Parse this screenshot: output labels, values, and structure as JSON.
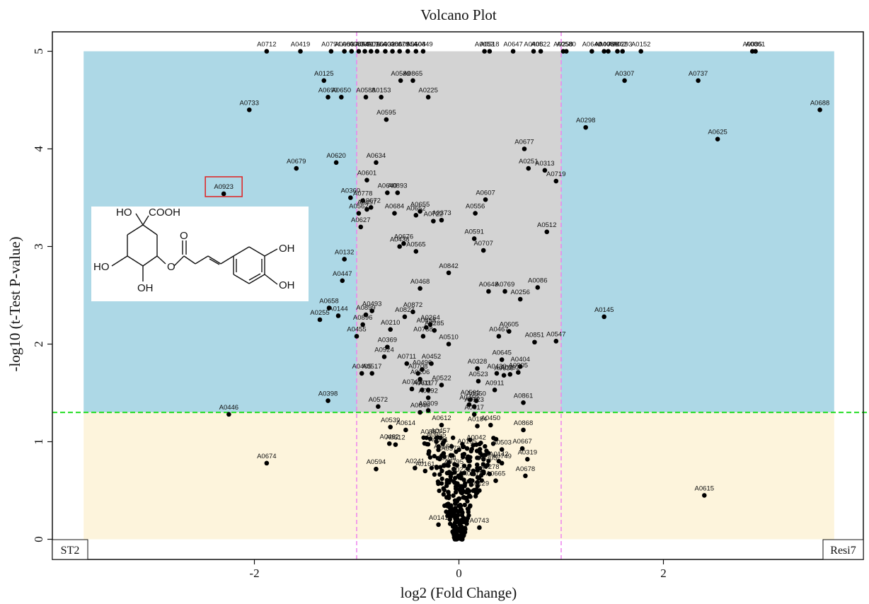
{
  "chart_data": {
    "type": "scatter",
    "title": "Volcano Plot",
    "xlabel": "log2 (Fold Change)",
    "ylabel": "-log10 (t-Test P-value)",
    "xlim": [
      -3.98,
      3.98
    ],
    "ylim": [
      -0.2,
      5.2
    ],
    "x_ticks": [
      -2,
      0,
      2
    ],
    "y_ticks": [
      0,
      1,
      2,
      3,
      4,
      5
    ],
    "fc_threshold_lines": [
      -1,
      1
    ],
    "p_threshold_line": 1.3,
    "group_left": "ST2",
    "group_right": "Resi7",
    "highlight_label": "A0923",
    "colors": {
      "significant_region": "#add8e6",
      "non_significant_region": "#fdf4dc",
      "central_region": "#d3d3d3",
      "fc_line": "#ee82ee",
      "p_line": "#22dd22",
      "highlight_box": "#e02020",
      "points": "#000000"
    },
    "labeled_points": [
      {
        "label": "A0712",
        "x": -1.88,
        "y": 5.0
      },
      {
        "label": "A0419",
        "x": -1.55,
        "y": 5.0
      },
      {
        "label": "A0794",
        "x": -1.25,
        "y": 5.0
      },
      {
        "label": "A0083",
        "x": -1.12,
        "y": 5.0
      },
      {
        "label": "A0038",
        "x": -1.05,
        "y": 5.0
      },
      {
        "label": "A0054",
        "x": -0.98,
        "y": 5.0
      },
      {
        "label": "A0051",
        "x": -0.92,
        "y": 5.0
      },
      {
        "label": "A0176",
        "x": -0.86,
        "y": 5.0
      },
      {
        "label": "A0164",
        "x": -0.8,
        "y": 5.0
      },
      {
        "label": "A0032",
        "x": -0.72,
        "y": 5.0
      },
      {
        "label": "A0386",
        "x": -0.65,
        "y": 5.0
      },
      {
        "label": "A0079",
        "x": -0.58,
        "y": 5.0
      },
      {
        "label": "A0554",
        "x": -0.5,
        "y": 5.0
      },
      {
        "label": "A0608",
        "x": -0.42,
        "y": 5.0
      },
      {
        "label": "A0449",
        "x": -0.35,
        "y": 5.0
      },
      {
        "label": "A0053",
        "x": 0.25,
        "y": 5.0
      },
      {
        "label": "A0518",
        "x": 0.3,
        "y": 5.0
      },
      {
        "label": "A0647",
        "x": 0.53,
        "y": 5.0
      },
      {
        "label": "A0408",
        "x": 0.73,
        "y": 5.0
      },
      {
        "label": "A0522",
        "x": 0.8,
        "y": 5.0
      },
      {
        "label": "A0258",
        "x": 1.02,
        "y": 5.0
      },
      {
        "label": "A0580",
        "x": 1.05,
        "y": 5.0
      },
      {
        "label": "A0640",
        "x": 1.3,
        "y": 5.0
      },
      {
        "label": "A0408",
        "x": 1.42,
        "y": 5.0
      },
      {
        "label": "A0086",
        "x": 1.46,
        "y": 5.0
      },
      {
        "label": "A0862",
        "x": 1.55,
        "y": 5.0
      },
      {
        "label": "A0293",
        "x": 1.6,
        "y": 5.0
      },
      {
        "label": "A0152",
        "x": 1.78,
        "y": 5.0
      },
      {
        "label": "A0035",
        "x": 2.87,
        "y": 5.0
      },
      {
        "label": "A0861",
        "x": 2.9,
        "y": 5.0
      },
      {
        "label": "A0125",
        "x": -1.32,
        "y": 4.7
      },
      {
        "label": "A0589",
        "x": -0.57,
        "y": 4.7
      },
      {
        "label": "A0865",
        "x": -0.45,
        "y": 4.7
      },
      {
        "label": "A0307",
        "x": 1.62,
        "y": 4.7
      },
      {
        "label": "A0737",
        "x": 2.34,
        "y": 4.7
      },
      {
        "label": "A0690",
        "x": -1.28,
        "y": 4.53
      },
      {
        "label": "A0650",
        "x": -1.15,
        "y": 4.53
      },
      {
        "label": "A0588",
        "x": -0.91,
        "y": 4.53
      },
      {
        "label": "A0153",
        "x": -0.76,
        "y": 4.53
      },
      {
        "label": "A0225",
        "x": -0.3,
        "y": 4.53
      },
      {
        "label": "A0733",
        "x": -2.05,
        "y": 4.4
      },
      {
        "label": "A0688",
        "x": 3.53,
        "y": 4.4
      },
      {
        "label": "A0595",
        "x": -0.71,
        "y": 4.3
      },
      {
        "label": "A0298",
        "x": 1.24,
        "y": 4.22
      },
      {
        "label": "A0625",
        "x": 2.53,
        "y": 4.1
      },
      {
        "label": "A0677",
        "x": 0.64,
        "y": 4.0
      },
      {
        "label": "A0634",
        "x": -0.81,
        "y": 3.86
      },
      {
        "label": "A0620",
        "x": -1.2,
        "y": 3.86
      },
      {
        "label": "A0679",
        "x": -1.59,
        "y": 3.8
      },
      {
        "label": "A0251",
        "x": 0.68,
        "y": 3.8
      },
      {
        "label": "A0313",
        "x": 0.84,
        "y": 3.78
      },
      {
        "label": "A0719",
        "x": 0.95,
        "y": 3.67
      },
      {
        "label": "A0601",
        "x": -0.9,
        "y": 3.68
      },
      {
        "label": "A0640",
        "x": -0.7,
        "y": 3.55
      },
      {
        "label": "A0893",
        "x": -0.6,
        "y": 3.55
      },
      {
        "label": "A0923",
        "x": -2.3,
        "y": 3.54
      },
      {
        "label": "A0360",
        "x": -1.06,
        "y": 3.5
      },
      {
        "label": "A0778",
        "x": -0.94,
        "y": 3.47
      },
      {
        "label": "A0607",
        "x": 0.26,
        "y": 3.48
      },
      {
        "label": "A0672",
        "x": -0.86,
        "y": 3.4
      },
      {
        "label": "A0457",
        "x": -0.9,
        "y": 3.38
      },
      {
        "label": "A0655",
        "x": -0.38,
        "y": 3.36
      },
      {
        "label": "A0652",
        "x": -0.42,
        "y": 3.32
      },
      {
        "label": "A0556",
        "x": 0.16,
        "y": 3.34
      },
      {
        "label": "A0562",
        "x": -0.98,
        "y": 3.34
      },
      {
        "label": "A0684",
        "x": -0.63,
        "y": 3.34
      },
      {
        "label": "A0373",
        "x": -0.17,
        "y": 3.27
      },
      {
        "label": "A0722",
        "x": -0.25,
        "y": 3.26
      },
      {
        "label": "A0627",
        "x": -0.96,
        "y": 3.2
      },
      {
        "label": "A0512",
        "x": 0.86,
        "y": 3.15
      },
      {
        "label": "A0591",
        "x": 0.15,
        "y": 3.08
      },
      {
        "label": "A0676",
        "x": -0.54,
        "y": 3.03
      },
      {
        "label": "A0438",
        "x": -0.58,
        "y": 3.0
      },
      {
        "label": "A0565",
        "x": -0.42,
        "y": 2.95
      },
      {
        "label": "A0707",
        "x": 0.24,
        "y": 2.96
      },
      {
        "label": "A0132",
        "x": -1.12,
        "y": 2.87
      },
      {
        "label": "A0842",
        "x": -0.1,
        "y": 2.73
      },
      {
        "label": "A0447",
        "x": -1.14,
        "y": 2.65
      },
      {
        "label": "A0468",
        "x": -0.38,
        "y": 2.57
      },
      {
        "label": "A0086",
        "x": 0.77,
        "y": 2.58
      },
      {
        "label": "A0648",
        "x": 0.29,
        "y": 2.54
      },
      {
        "label": "A0769",
        "x": 0.45,
        "y": 2.54
      },
      {
        "label": "A0256",
        "x": 0.6,
        "y": 2.46
      },
      {
        "label": "A0658",
        "x": -1.27,
        "y": 2.37
      },
      {
        "label": "A0144",
        "x": -1.18,
        "y": 2.29
      },
      {
        "label": "A0255",
        "x": -1.36,
        "y": 2.25
      },
      {
        "label": "A0493",
        "x": -0.85,
        "y": 2.34
      },
      {
        "label": "A0872",
        "x": -0.45,
        "y": 2.33
      },
      {
        "label": "A0899",
        "x": -0.91,
        "y": 2.3
      },
      {
        "label": "A0827",
        "x": -0.53,
        "y": 2.28
      },
      {
        "label": "A0145",
        "x": 1.42,
        "y": 2.28
      },
      {
        "label": "A0896",
        "x": -0.94,
        "y": 2.2
      },
      {
        "label": "A0264",
        "x": -0.28,
        "y": 2.2
      },
      {
        "label": "A0858",
        "x": -0.32,
        "y": 2.17
      },
      {
        "label": "A0285",
        "x": -0.24,
        "y": 2.14
      },
      {
        "label": "A0210",
        "x": -0.67,
        "y": 2.15
      },
      {
        "label": "A0605",
        "x": 0.49,
        "y": 2.13
      },
      {
        "label": "A0455",
        "x": -1.0,
        "y": 2.08
      },
      {
        "label": "A0738",
        "x": -0.35,
        "y": 2.08
      },
      {
        "label": "A0467",
        "x": 0.39,
        "y": 2.08
      },
      {
        "label": "A0851",
        "x": 0.74,
        "y": 2.02
      },
      {
        "label": "A0547",
        "x": 0.95,
        "y": 2.03
      },
      {
        "label": "A0510",
        "x": -0.1,
        "y": 2.0
      },
      {
        "label": "A0369",
        "x": -0.7,
        "y": 1.97
      },
      {
        "label": "A0924",
        "x": -0.73,
        "y": 1.87
      },
      {
        "label": "A0645",
        "x": 0.42,
        "y": 1.84
      },
      {
        "label": "A0711",
        "x": -0.51,
        "y": 1.8
      },
      {
        "label": "A0452",
        "x": -0.27,
        "y": 1.8
      },
      {
        "label": "A0404",
        "x": 0.6,
        "y": 1.77
      },
      {
        "label": "A0328",
        "x": 0.18,
        "y": 1.75
      },
      {
        "label": "A0496",
        "x": -0.36,
        "y": 1.74
      },
      {
        "label": "A0708",
        "x": -0.4,
        "y": 1.7
      },
      {
        "label": "A0430",
        "x": 0.37,
        "y": 1.7
      },
      {
        "label": "A0636",
        "x": 0.44,
        "y": 1.68
      },
      {
        "label": "A0392",
        "x": 0.5,
        "y": 1.69
      },
      {
        "label": "A0905",
        "x": 0.58,
        "y": 1.71
      },
      {
        "label": "A0405",
        "x": -0.95,
        "y": 1.7
      },
      {
        "label": "A0517",
        "x": -0.85,
        "y": 1.7
      },
      {
        "label": "A0206",
        "x": -0.38,
        "y": 1.64
      },
      {
        "label": "A0523",
        "x": 0.19,
        "y": 1.62
      },
      {
        "label": "A0522",
        "x": -0.17,
        "y": 1.58
      },
      {
        "label": "A0749",
        "x": -0.46,
        "y": 1.54
      },
      {
        "label": "A0377",
        "x": -0.3,
        "y": 1.53
      },
      {
        "label": "A0611",
        "x": -0.36,
        "y": 1.53
      },
      {
        "label": "A0911",
        "x": 0.35,
        "y": 1.53
      },
      {
        "label": "A0192",
        "x": -0.3,
        "y": 1.45
      },
      {
        "label": "A0398",
        "x": -1.28,
        "y": 1.42
      },
      {
        "label": "A0561",
        "x": 0.11,
        "y": 1.43
      },
      {
        "label": "A0550",
        "x": 0.17,
        "y": 1.42
      },
      {
        "label": "A0861",
        "x": 0.63,
        "y": 1.4
      },
      {
        "label": "A0572",
        "x": -0.79,
        "y": 1.36
      },
      {
        "label": "A0469",
        "x": 0.1,
        "y": 1.38
      },
      {
        "label": "A0323",
        "x": 0.15,
        "y": 1.36
      },
      {
        "label": "A0309",
        "x": -0.3,
        "y": 1.32
      },
      {
        "label": "A0846",
        "x": -0.38,
        "y": 1.3
      },
      {
        "label": "A0617",
        "x": 0.15,
        "y": 1.28
      },
      {
        "label": "A0446",
        "x": -2.25,
        "y": 1.28
      },
      {
        "label": "A0539",
        "x": -0.67,
        "y": 1.15
      },
      {
        "label": "A0612",
        "x": -0.17,
        "y": 1.17
      },
      {
        "label": "A0450",
        "x": 0.31,
        "y": 1.17
      },
      {
        "label": "A0184",
        "x": 0.18,
        "y": 1.16
      },
      {
        "label": "A0614",
        "x": -0.52,
        "y": 1.12
      },
      {
        "label": "A0868",
        "x": 0.63,
        "y": 1.12
      },
      {
        "label": "A0887",
        "x": -0.28,
        "y": 1.03
      },
      {
        "label": "A0457",
        "x": -0.18,
        "y": 1.04
      },
      {
        "label": "A0855",
        "x": -0.22,
        "y": 1.0
      },
      {
        "label": "A0462",
        "x": -0.68,
        "y": 0.98
      },
      {
        "label": "A0512",
        "x": -0.62,
        "y": 0.97
      },
      {
        "label": "A0831",
        "x": -0.2,
        "y": 0.95
      },
      {
        "label": "A0042",
        "x": 0.17,
        "y": 0.97
      },
      {
        "label": "A0135",
        "x": 0.08,
        "y": 0.93
      },
      {
        "label": "A0503",
        "x": 0.42,
        "y": 0.92
      },
      {
        "label": "A0667",
        "x": 0.62,
        "y": 0.93
      },
      {
        "label": "A0563",
        "x": -0.15,
        "y": 0.88
      },
      {
        "label": "A0372",
        "x": -0.08,
        "y": 0.86
      },
      {
        "label": "A0319",
        "x": 0.67,
        "y": 0.82
      },
      {
        "label": "A0142",
        "x": 0.39,
        "y": 0.8
      },
      {
        "label": "A0749",
        "x": 0.42,
        "y": 0.78
      },
      {
        "label": "A0674",
        "x": -1.88,
        "y": 0.78
      },
      {
        "label": "A0241",
        "x": -0.43,
        "y": 0.73
      },
      {
        "label": "A0594",
        "x": -0.81,
        "y": 0.72
      },
      {
        "label": "A0034",
        "x": -0.12,
        "y": 0.76
      },
      {
        "label": "A0305",
        "x": 0.28,
        "y": 0.76
      },
      {
        "label": "A0795",
        "x": -0.05,
        "y": 0.72
      },
      {
        "label": "A0161",
        "x": -0.33,
        "y": 0.7
      },
      {
        "label": "A0278",
        "x": 0.3,
        "y": 0.67
      },
      {
        "label": "A0678",
        "x": 0.65,
        "y": 0.65
      },
      {
        "label": "A0229",
        "x": 0.02,
        "y": 0.64
      },
      {
        "label": "A0401",
        "x": 0.13,
        "y": 0.6
      },
      {
        "label": "A0665",
        "x": 0.36,
        "y": 0.6
      },
      {
        "label": "A0615",
        "x": 2.4,
        "y": 0.45
      },
      {
        "label": "A0129",
        "x": 0.2,
        "y": 0.5
      },
      {
        "label": "A0743",
        "x": 0.2,
        "y": 0.12
      },
      {
        "label": "A0141",
        "x": -0.2,
        "y": 0.15
      }
    ]
  }
}
